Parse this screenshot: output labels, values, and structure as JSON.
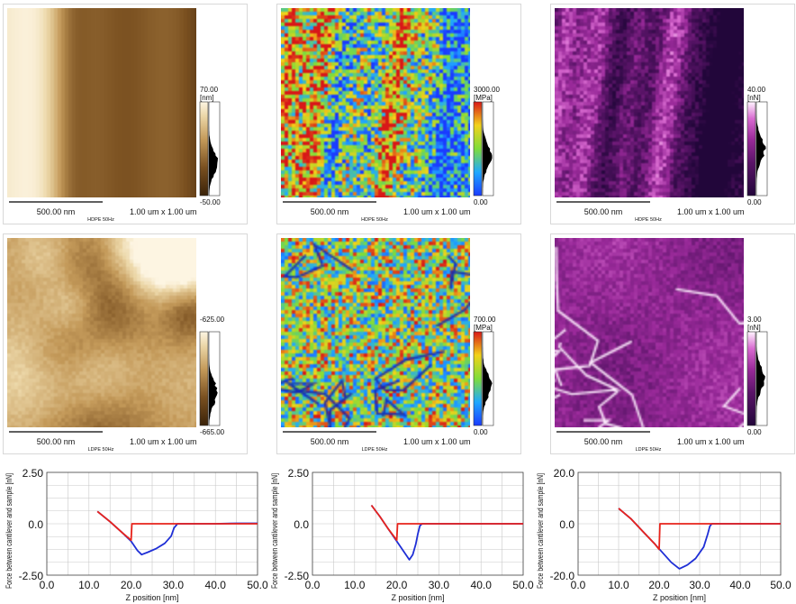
{
  "panels": [
    {
      "sample": "HDPE 50Hz",
      "scalebar": "500.00 nm",
      "size": "1.00 um x 1.00 um",
      "unit": "[nm]",
      "max": "70.00",
      "min": "-50.00",
      "colormap": "brown",
      "texture": "vertical-stripes"
    },
    {
      "sample": "HDPE 50Hz",
      "scalebar": "500.00 nm",
      "size": "1.00 um x 1.00 um",
      "unit": "[MPa]",
      "max": "3000.00",
      "min": "0.00",
      "colormap": "jet",
      "texture": "vertical-stripes"
    },
    {
      "sample": "HDPE 50Hz",
      "scalebar": "500.00 nm",
      "size": "1.00 um x 1.00 um",
      "unit": "[nN]",
      "max": "40.00",
      "min": "0.00",
      "colormap": "magenta",
      "texture": "vertical-stripes"
    },
    {
      "sample": "LDPE 50Hz",
      "scalebar": "500.00 nm",
      "size": "1.00 um x 1.00 um",
      "unit": "",
      "max": "-625.00",
      "min": "-665.00",
      "colormap": "brown",
      "texture": "blobs"
    },
    {
      "sample": "LDPE 50Hz",
      "scalebar": "500.00 nm",
      "size": "1.00 um x 1.00 um",
      "unit": "[MPa]",
      "max": "700.00",
      "min": "0.00",
      "colormap": "jet",
      "texture": "noise"
    },
    {
      "sample": "LDPE 50Hz",
      "scalebar": "500.00 nm",
      "size": "1.00 um x 1.00 um",
      "unit": "[nN]",
      "max": "3.00",
      "min": "0.00",
      "colormap": "magenta",
      "texture": "veins"
    }
  ],
  "colors": {
    "approach": "#e8231b",
    "retract": "#1f2fd6",
    "grid": "#c8c8c8"
  },
  "chart_data": [
    {
      "type": "line",
      "xlabel": "Z position [nm]",
      "ylabel": "Force between cantilever and sample [nN]",
      "xlim": [
        0,
        50
      ],
      "ylim": [
        -2.5,
        2.5
      ],
      "xticks": [
        "0.0",
        "10.0",
        "20.0",
        "30.0",
        "40.0",
        "50.0"
      ],
      "yticks": [
        "2.50",
        "0.0",
        "-2.50"
      ],
      "series": [
        {
          "color": "#e8231b",
          "x": [
            12,
            15,
            18,
            20,
            20.2,
            22,
            25,
            30,
            35,
            40,
            45,
            50
          ],
          "y": [
            0.6,
            0.1,
            -0.45,
            -0.8,
            0.0,
            0.0,
            0.0,
            0.0,
            0.0,
            0.0,
            0.0,
            0.0
          ]
        },
        {
          "color": "#1f2fd6",
          "x": [
            12,
            15,
            18,
            20,
            21.5,
            22.5,
            24,
            26,
            28,
            29.5,
            30.2,
            31,
            35,
            40,
            45,
            50
          ],
          "y": [
            0.6,
            0.1,
            -0.45,
            -0.85,
            -1.3,
            -1.5,
            -1.38,
            -1.2,
            -0.95,
            -0.6,
            -0.2,
            0.0,
            0.0,
            0.0,
            0.02,
            0.02
          ]
        }
      ]
    },
    {
      "type": "line",
      "xlabel": "Z position [nm]",
      "ylabel": "Force between cantilever and sample [nN]",
      "xlim": [
        0,
        50
      ],
      "ylim": [
        -2.5,
        2.5
      ],
      "xticks": [
        "0.0",
        "10.0",
        "20.0",
        "30.0",
        "40.0",
        "50.0"
      ],
      "yticks": [
        "2.50",
        "0.0",
        "-2.50"
      ],
      "series": [
        {
          "color": "#e8231b",
          "x": [
            14,
            16,
            18,
            20,
            20.2,
            22,
            25,
            30,
            35,
            40,
            45,
            50
          ],
          "y": [
            0.9,
            0.35,
            -0.25,
            -0.8,
            0.0,
            0.0,
            0.0,
            0.0,
            0.0,
            0.0,
            0.0,
            0.0
          ]
        },
        {
          "color": "#1f2fd6",
          "x": [
            14,
            16,
            18,
            20,
            21.5,
            23,
            23.8,
            24.5,
            25,
            25.5,
            26,
            30,
            35,
            40,
            45,
            50
          ],
          "y": [
            0.9,
            0.35,
            -0.25,
            -0.85,
            -1.3,
            -1.75,
            -1.5,
            -1.0,
            -0.5,
            -0.1,
            0.0,
            0.0,
            0.0,
            0.0,
            0.0,
            0.0
          ]
        }
      ]
    },
    {
      "type": "line",
      "xlabel": "Z position [nm]",
      "ylabel": "Force between cantilever and sample [nN]",
      "xlim": [
        0,
        50
      ],
      "ylim": [
        -20,
        20
      ],
      "xticks": [
        "0.0",
        "10.0",
        "20.0",
        "30.0",
        "40.0",
        "50.0"
      ],
      "yticks": [
        "20.0",
        "0.0",
        "-20.0"
      ],
      "series": [
        {
          "color": "#e8231b",
          "x": [
            10,
            13,
            16,
            19,
            20,
            20.2,
            22,
            25,
            30,
            35,
            40,
            45,
            50
          ],
          "y": [
            6,
            2,
            -3,
            -8,
            -10,
            0.0,
            0.0,
            0.0,
            0.0,
            0.0,
            0.0,
            0.0,
            0.0
          ]
        },
        {
          "color": "#1f2fd6",
          "x": [
            10,
            13,
            16,
            19,
            21,
            23,
            25,
            27,
            29,
            31,
            32,
            32.5,
            33,
            35,
            40,
            45,
            50
          ],
          "y": [
            6,
            2,
            -3,
            -8,
            -11.5,
            -15,
            -17.5,
            -16,
            -13.5,
            -9,
            -4,
            -1,
            0.0,
            0.0,
            0.0,
            0.0,
            0.0
          ]
        }
      ]
    }
  ]
}
